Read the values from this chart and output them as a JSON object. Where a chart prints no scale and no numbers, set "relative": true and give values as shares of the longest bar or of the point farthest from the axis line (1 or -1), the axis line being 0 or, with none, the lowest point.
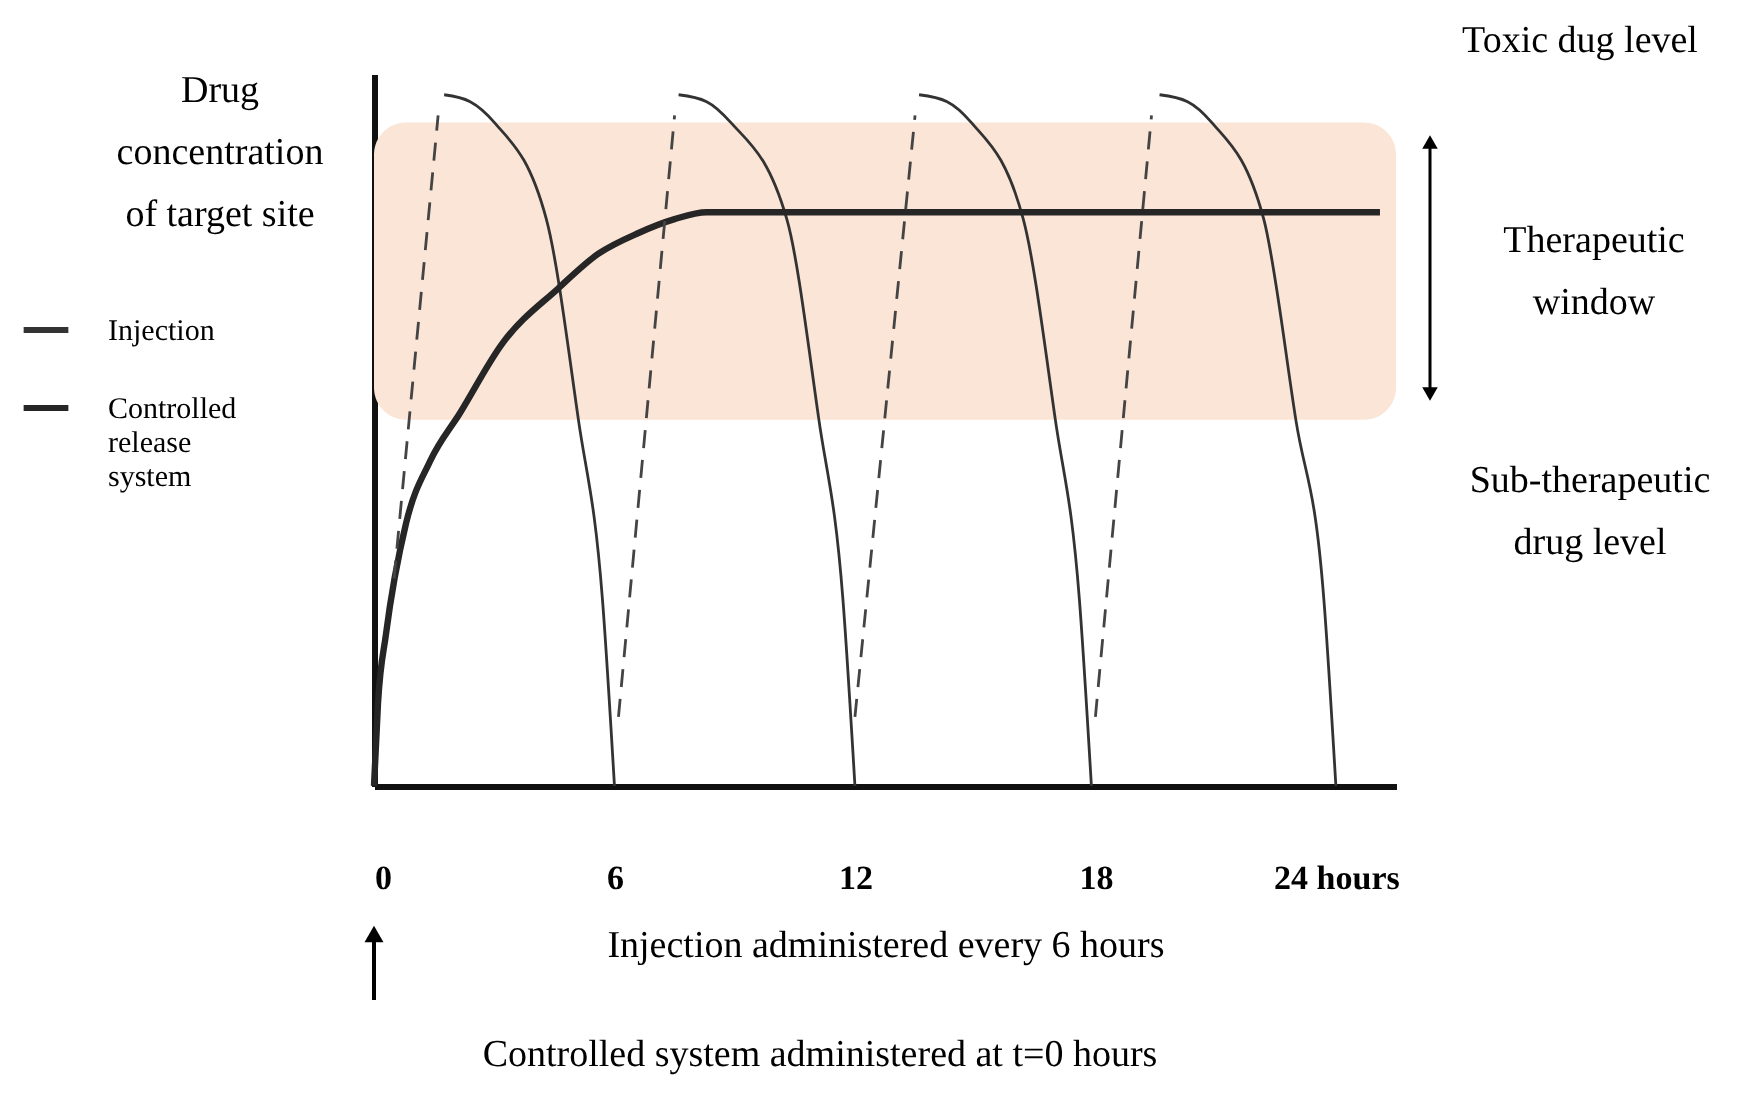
{
  "chart_data": {
    "type": "line",
    "relative": true,
    "ylabel": "Drug concentration of target site",
    "xlabel": "Injection administered every 6 hours",
    "xlim": [
      0,
      25.5
    ],
    "xticks": [
      0,
      6,
      12,
      18,
      {
        "value": 24,
        "label": "24 hours"
      }
    ],
    "legend": "left",
    "series": [
      {
        "name": "Injection",
        "color": "#333333",
        "x": [
          1.75,
          2.4,
          3.0,
          4.3,
          5.1,
          5.7,
          6.0,
          null,
          7.6,
          8.3,
          8.9,
          10.3,
          11.1,
          11.7,
          12.0,
          null,
          13.6,
          14.3,
          14.9,
          16.2,
          17.0,
          17.6,
          17.9,
          null,
          19.6,
          20.3,
          20.9,
          22.2,
          23.0,
          23.7,
          24.0
        ],
        "values": [
          1,
          0.99,
          0.96,
          0.82,
          0.53,
          0.27,
          0,
          null,
          1,
          0.99,
          0.96,
          0.82,
          0.53,
          0.27,
          0,
          null,
          1,
          0.99,
          0.96,
          0.82,
          0.53,
          0.27,
          0,
          null,
          1,
          0.99,
          0.96,
          0.82,
          0.53,
          0.27,
          0
        ]
      },
      {
        "name": "Controlled release system",
        "color": "#262626",
        "x": [
          0,
          0.1,
          0.3,
          0.8,
          1.4,
          2.15,
          3.2,
          4.6,
          5.6,
          6.6,
          7.5,
          8.3,
          10,
          25.1
        ],
        "values": [
          0,
          0.12,
          0.22,
          0.38,
          0.47,
          0.54,
          0.64,
          0.72,
          0.77,
          0.8,
          0.82,
          0.83,
          0.83,
          0.83
        ]
      },
      {
        "color": "#444444",
        "line_style": "dashed",
        "x": [
          0.5,
          1.6,
          null,
          6.1,
          7.5,
          null,
          12.0,
          13.5,
          null,
          18.0,
          19.4
        ],
        "values": [
          0.3,
          0.97,
          null,
          0.1,
          0.97,
          null,
          0.1,
          0.97,
          null,
          0.1,
          0.97
        ]
      }
    ],
    "bands": [
      {
        "axis": "y",
        "from": 0.53,
        "to": 0.96,
        "label": "Therapeutic window",
        "color": "#fbe5d6"
      }
    ],
    "annotations": [
      "Toxic dug level",
      "Sub-therapeutic drug level",
      "Controlled system administered at t=0 hours"
    ]
  }
}
